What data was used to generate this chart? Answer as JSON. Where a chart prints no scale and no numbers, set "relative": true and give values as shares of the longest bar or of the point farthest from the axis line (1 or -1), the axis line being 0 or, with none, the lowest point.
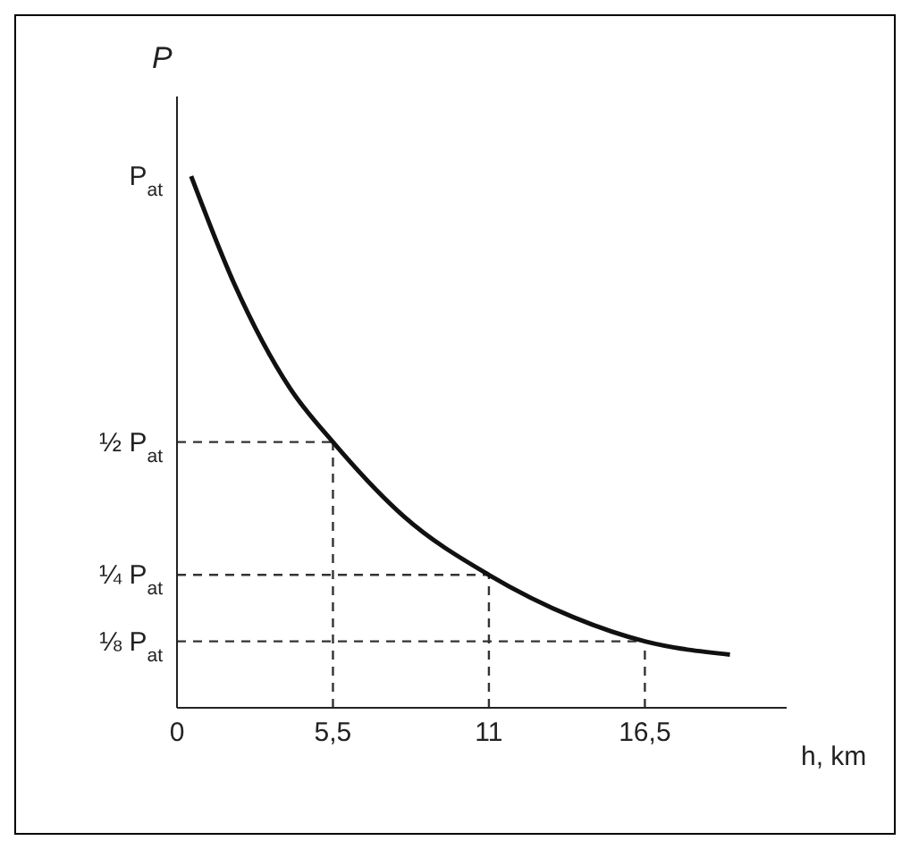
{
  "chart_data": {
    "type": "line",
    "xlabel": "h, km",
    "ylabel": "P",
    "x": [
      0.5,
      2,
      4,
      5.5,
      8,
      11,
      14,
      16.5,
      19.5
    ],
    "series": [
      {
        "color": "#111111",
        "values": [
          1,
          0.8,
          0.6,
          0.5,
          0.36,
          0.25,
          0.17,
          0.125,
          0.1
        ]
      }
    ],
    "relative": true,
    "xlim": [
      0,
      21.5
    ],
    "xticks": [
      0,
      {
        "value": 5.5,
        "label": "5,5"
      },
      11,
      {
        "value": 16.5,
        "label": "16,5"
      }
    ],
    "annotations": [
      "P$_{at}$"
    ],
    "ref_lines": [
      {
        "axis": "y",
        "value": 0.5,
        "label": "½ P$_{at}$",
        "line_style": "dashed"
      },
      {
        "axis": "x",
        "value": 5.5,
        "line_style": "dashed"
      },
      {
        "axis": "y",
        "value": 0.25,
        "label": "¼ P$_{at}$",
        "line_style": "dashed"
      },
      {
        "axis": "x",
        "value": 11,
        "line_style": "dashed"
      },
      {
        "axis": "y",
        "value": 0.125,
        "label": "⅛ P$_{at}$",
        "line_style": "dashed"
      },
      {
        "axis": "x",
        "value": 16.5,
        "line_style": "dashed"
      }
    ],
    "grid": false,
    "legend": false,
    "marker": "none",
    "line_style": "solid"
  }
}
